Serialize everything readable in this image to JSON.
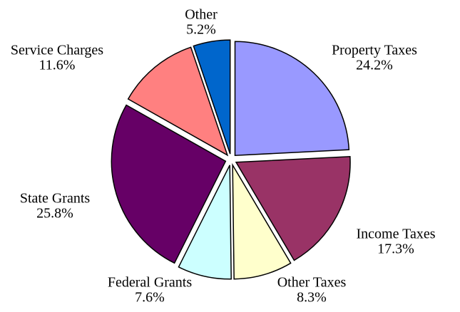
{
  "chart_data": {
    "type": "pie",
    "categories": [
      "Property Taxes",
      "Income Taxes",
      "Other Taxes",
      "Federal Grants",
      "State Grants",
      "Service Charges",
      "Other"
    ],
    "values": [
      24.2,
      17.3,
      8.3,
      7.6,
      25.8,
      11.6,
      5.2
    ],
    "value_labels": [
      "24.2%",
      "17.3%",
      "8.3%",
      "7.6%",
      "25.8%",
      "11.6%",
      "5.2%"
    ],
    "colors": [
      "#9999ff",
      "#993366",
      "#ffffcc",
      "#ccffff",
      "#660066",
      "#ff8080",
      "#0066cc"
    ],
    "exploded": true
  }
}
